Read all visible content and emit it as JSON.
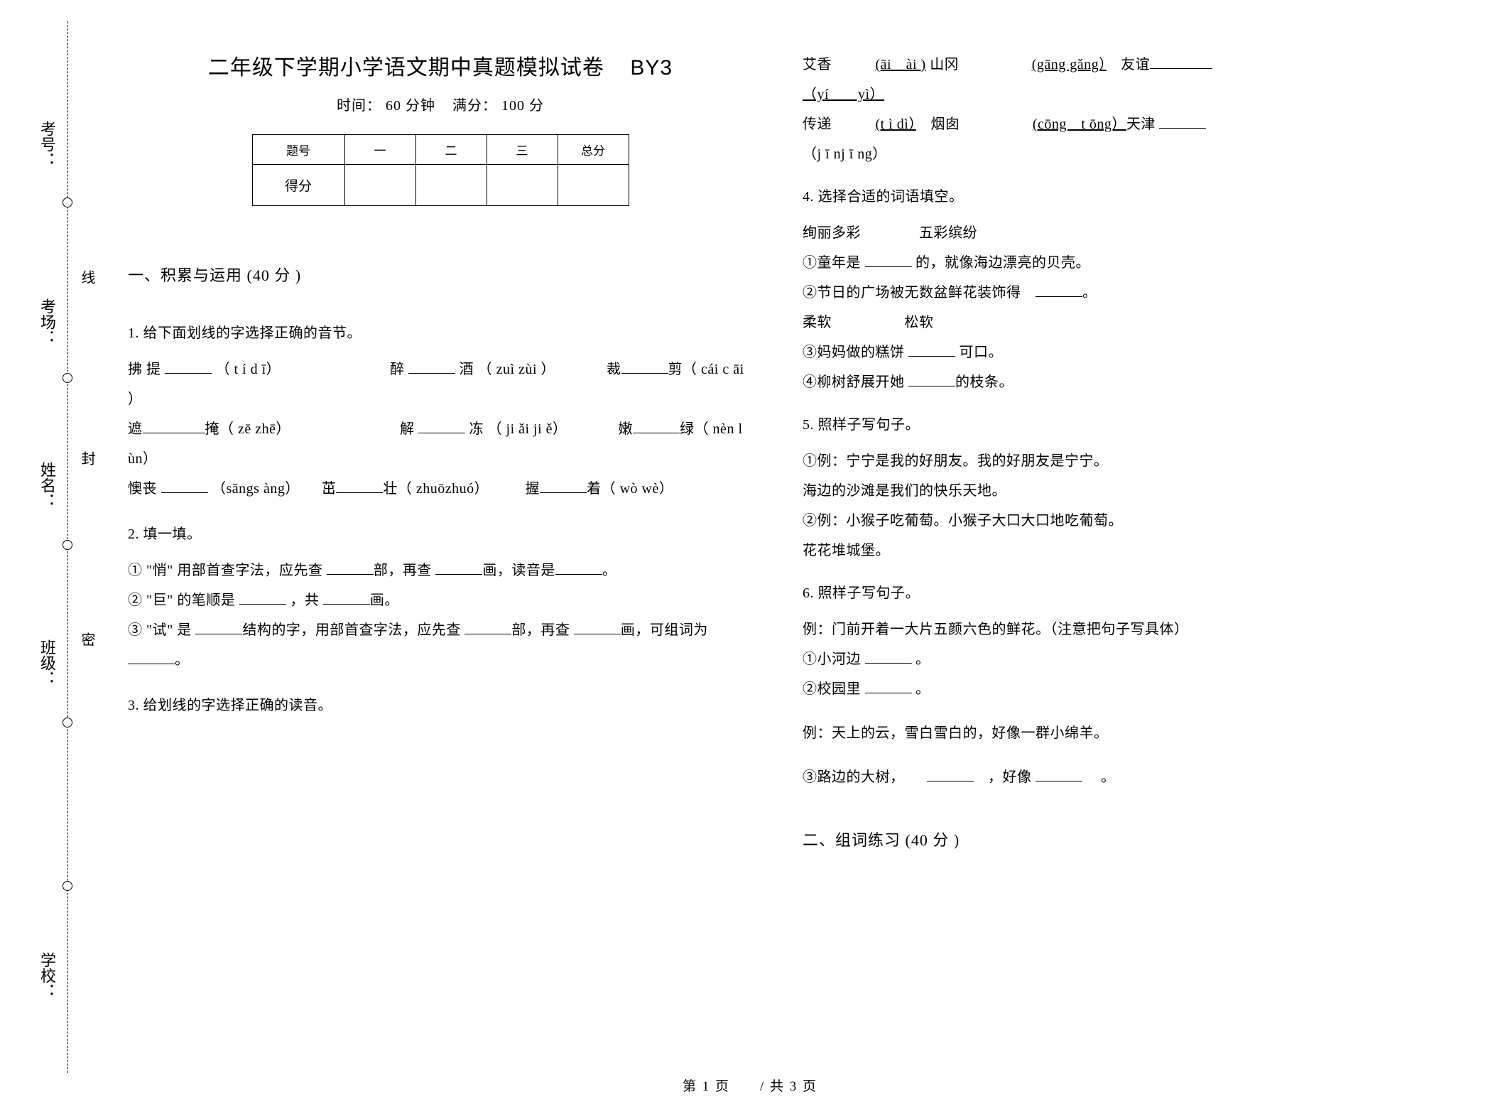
{
  "binding": {
    "labels": [
      "考号：",
      "考场：",
      "姓名：",
      "班级：",
      "学校："
    ],
    "seal": [
      "线",
      "封",
      "密"
    ]
  },
  "header": {
    "title": "二年级下学期小学语文期中真题模拟试卷",
    "code": "BY3",
    "time_label": "时间：",
    "time_value": "60 分钟",
    "full_label": "满分：",
    "full_value": "100 分"
  },
  "score_table": {
    "headers": [
      "题号",
      "一",
      "二",
      "三",
      "总分"
    ],
    "row_label": "得分"
  },
  "section1": {
    "title": "一、积累与运用  (40 分 )",
    "q1": {
      "label": "1.  给下面划线的字选择正确的音节。",
      "lines": [
        "拂 提 ______ （ t í d ī）　　　　　　　　醉 ______ 酒 （ zuì  zùi ）　　　　裁______剪（ cái c āi ）",
        "遮________掩（ zē zhē）　　　　　　　　解 ______ 冻 （ ji ǎi  ji ě）　　　　嫩______绿（ nèn l ùn）",
        "懊丧 ______ （sāngs àng）　　茁______壮（ zhuōzhuó）　　　握______着（ wò wè）"
      ]
    },
    "q2": {
      "label": "2.  填一填。",
      "lines": [
        "① \"悄\" 用部首查字法，应先查  ______部，再查 ______画，读音是______。",
        "② \"巨\" 的笔顺是 ______ ，共 ______画。",
        "③ \"试\" 是  ______结构的字，用部首查字法，应先查  ______部，再查 ______画，可组词为 ______。"
      ]
    },
    "q3": {
      "label": "3.  给划线的字选择正确的读音。",
      "lines_right": [
        "艾香　　　<u>(āi　ài )</u> 山冈　　　　　<u>(gāng gǎng）</u>　友谊________",
        "<u>（yí　　yì）</u>",
        "传递　　　<u>(t ì dì）</u>　烟囱　　　　　<u>(cōng　t ōng）</u>天津  ______",
        "（j ī nj ī ng）"
      ]
    },
    "q4": {
      "label": "4.  选择合适的词语填空。",
      "lines": [
        "绚丽多彩　　　　五彩缤纷",
        "①童年是  ______ 的，就像海边漂亮的贝壳。",
        "②节日的广场被无数盆鲜花装饰得　______。",
        "柔软　　　　　松软",
        "③妈妈做的糕饼  ______ 可口。",
        "④柳树舒展开她  ______的枝条。"
      ]
    },
    "q5": {
      "label": "5.  照样子写句子。",
      "lines": [
        "①例：宁宁是我的好朋友。我的好朋友是宁宁。",
        "海边的沙滩是我们的快乐天地。",
        "②例：小猴子吃葡萄。小猴子大口大口地吃葡萄。",
        "花花堆城堡。"
      ]
    },
    "q6": {
      "label": "6.  照样子写句子。",
      "lines": [
        "例：门前开着一大片五颜六色的鲜花。（注意把句子写具体）",
        "①小河边  ______ 。",
        "②校园里  ______ 。",
        "",
        "例：天上的云，雪白雪白的，好像一群小绵羊。",
        "",
        "③路边的大树，　　______　，好像  ______ 　。"
      ]
    }
  },
  "section2": {
    "title": "二、组词练习  (40 分 )"
  },
  "footer": {
    "text": "第 1 页　　/  共 3 页"
  },
  "styling": {
    "page_bg": "#ffffff",
    "text_color": "#000000",
    "title_fontsize": 30,
    "body_fontsize": 20,
    "table_border_color": "#000000"
  }
}
